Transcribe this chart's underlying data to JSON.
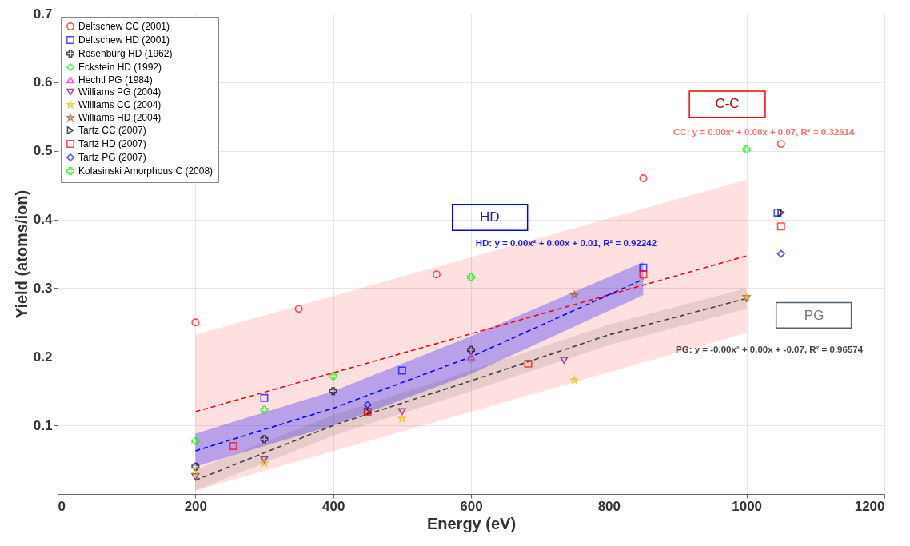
{
  "chart_data": {
    "type": "scatter",
    "xlabel": "Energy (eV)",
    "ylabel": "Yield (atoms/ion)",
    "xlim": [
      0,
      1200
    ],
    "ylim": [
      0,
      0.7
    ],
    "xticks": [
      0,
      200,
      400,
      600,
      800,
      1000,
      1200
    ],
    "yticks": [
      0.1,
      0.2,
      0.3,
      0.4,
      0.5,
      0.6,
      0.7
    ],
    "grid": true,
    "legend": "top left",
    "annotations": [
      "C-C",
      "CC: y = 0.00x² + 0.00x + 0.07, R² = 0.32614",
      "HD",
      "HD: y = 0.00x² + 0.00x + 0.01, R² = 0.92242",
      "PG",
      "PG: y = -0.00x² + 0.00x + -0.07, R² = 0.96574"
    ],
    "series": [
      {
        "name": "Deltschew CC (2001)",
        "color": "#ff0000",
        "marker": "circle",
        "x": [
          200,
          350,
          550,
          850,
          1050
        ],
        "values": [
          0.25,
          0.27,
          0.32,
          0.46,
          0.51
        ]
      },
      {
        "name": "Deltschew HD (2001)",
        "color": "#0000ff",
        "marker": "square",
        "x": [
          300,
          500,
          850,
          1045
        ],
        "values": [
          0.14,
          0.18,
          0.33,
          0.41
        ]
      },
      {
        "name": "Rosenburg HD (1962)",
        "color": "#000000",
        "marker": "cross",
        "x": [
          200,
          300,
          400,
          600
        ],
        "values": [
          0.04,
          0.08,
          0.15,
          0.21
        ]
      },
      {
        "name": "Eckstein HD (1992)",
        "color": "#00ee00",
        "marker": "diamond",
        "x": [
          600
        ],
        "values": [
          0.196
        ]
      },
      {
        "name": "Hechtl PG (1984)",
        "color": "#ff00ff",
        "marker": "triangle",
        "x": [
          600
        ],
        "values": [
          0.2
        ]
      },
      {
        "name": "Williams PG (2004)",
        "color": "#800080",
        "marker": "triangle-down",
        "x": [
          200,
          300,
          500,
          735,
          1000
        ],
        "values": [
          0.025,
          0.05,
          0.12,
          0.195,
          0.285
        ]
      },
      {
        "name": "Williams CC (2004)",
        "color": "#d4c000",
        "marker": "star",
        "x": [
          200,
          300,
          500,
          750,
          1000
        ],
        "values": [
          0.03,
          0.045,
          0.11,
          0.166,
          0.287
        ]
      },
      {
        "name": "Williams HD (2004)",
        "color": "#a0522d",
        "marker": "star",
        "x": [
          750
        ],
        "values": [
          0.29
        ]
      },
      {
        "name": "Tartz CC (2007)",
        "color": "#000000",
        "marker": "triangle-right",
        "x": [
          450,
          1050
        ],
        "values": [
          0.12,
          0.41
        ]
      },
      {
        "name": "Tartz HD (2007)",
        "color": "#ff0000",
        "marker": "square",
        "x": [
          255,
          450,
          683,
          850,
          1050
        ],
        "values": [
          0.07,
          0.12,
          0.19,
          0.32,
          0.39
        ]
      },
      {
        "name": "Tartz PG (2007)",
        "color": "#0000ff",
        "marker": "diamond",
        "x": [
          450,
          1050
        ],
        "values": [
          0.13,
          0.35
        ]
      },
      {
        "name": "Kolasinski Amorphous C (2008)",
        "color": "#00ee00",
        "marker": "cross",
        "x": [
          200,
          300,
          400,
          600,
          1000
        ],
        "values": [
          0.077,
          0.123,
          0.172,
          0.316,
          0.502
        ]
      },
      {
        "type": "line",
        "color": "#ff0000",
        "line_style": "dashed",
        "x": [
          200,
          1000
        ],
        "values": [
          0.12,
          0.347
        ],
        "lower": [
          0.005,
          0.235
        ],
        "upper": [
          0.232,
          0.458
        ]
      },
      {
        "type": "line",
        "color": "#0000ff",
        "line_style": "dashed",
        "x": [
          200,
          400,
          600,
          850
        ],
        "values": [
          0.063,
          0.125,
          0.2,
          0.313
        ],
        "lower": [
          0.04,
          0.1,
          0.175,
          0.29
        ],
        "upper": [
          0.088,
          0.15,
          0.23,
          0.338
        ]
      },
      {
        "type": "line",
        "color": "#404040",
        "line_style": "dashed",
        "x": [
          200,
          400,
          600,
          800,
          1000
        ],
        "values": [
          0.02,
          0.1,
          0.165,
          0.232,
          0.285
        ],
        "lower": [
          0.005,
          0.085,
          0.15,
          0.217,
          0.27
        ],
        "upper": [
          0.035,
          0.115,
          0.18,
          0.247,
          0.3
        ]
      }
    ]
  }
}
